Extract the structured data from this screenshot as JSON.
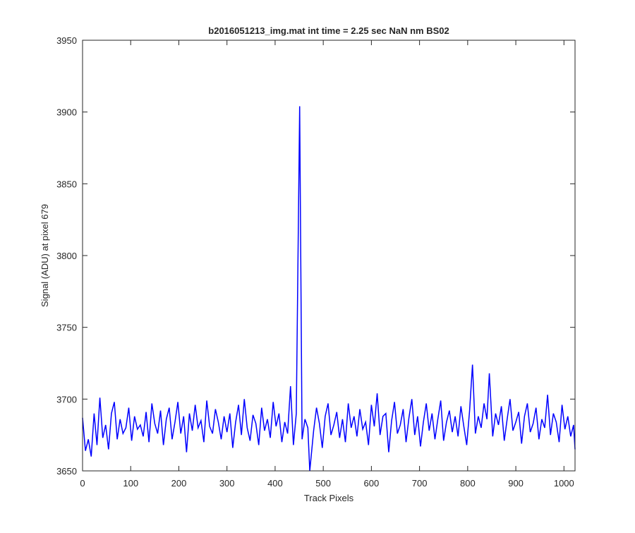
{
  "chart_data": {
    "type": "line",
    "title": "b2016051213_img.mat int time = 2.25 sec  NaN nm BS02",
    "xlabel": "Track Pixels",
    "ylabel": "Signal (ADU) at pixel 679",
    "x": [
      0,
      6,
      12,
      18,
      24,
      30,
      36,
      42,
      48,
      54,
      60,
      66,
      72,
      78,
      84,
      90,
      96,
      102,
      108,
      114,
      120,
      126,
      132,
      138,
      144,
      150,
      156,
      162,
      168,
      174,
      180,
      186,
      192,
      198,
      204,
      210,
      216,
      222,
      228,
      234,
      240,
      246,
      252,
      258,
      264,
      270,
      276,
      282,
      288,
      294,
      300,
      306,
      312,
      318,
      324,
      330,
      336,
      342,
      348,
      354,
      360,
      366,
      372,
      378,
      384,
      390,
      396,
      402,
      408,
      414,
      420,
      426,
      432,
      438,
      444,
      451,
      456,
      462,
      468,
      472,
      480,
      486,
      492,
      498,
      504,
      510,
      516,
      522,
      528,
      534,
      540,
      546,
      552,
      558,
      564,
      570,
      576,
      582,
      588,
      594,
      600,
      606,
      612,
      618,
      624,
      630,
      636,
      642,
      648,
      654,
      660,
      666,
      672,
      678,
      684,
      690,
      696,
      702,
      708,
      714,
      720,
      726,
      732,
      738,
      744,
      750,
      756,
      762,
      768,
      774,
      780,
      786,
      792,
      798,
      804,
      810,
      816,
      822,
      828,
      834,
      840,
      845,
      852,
      858,
      864,
      870,
      876,
      882,
      888,
      894,
      900,
      906,
      912,
      918,
      924,
      930,
      936,
      942,
      948,
      954,
      960,
      966,
      972,
      978,
      984,
      990,
      996,
      1002,
      1008,
      1014,
      1020,
      1023
    ],
    "series": [
      {
        "name": "signal",
        "color": "#0000ff",
        "values": [
          3687,
          3664,
          3672,
          3660,
          3690,
          3668,
          3701,
          3673,
          3682,
          3665,
          3690,
          3698,
          3672,
          3686,
          3676,
          3680,
          3694,
          3671,
          3688,
          3679,
          3682,
          3674,
          3691,
          3670,
          3697,
          3683,
          3676,
          3692,
          3668,
          3686,
          3694,
          3672,
          3684,
          3698,
          3676,
          3688,
          3663,
          3690,
          3678,
          3696,
          3680,
          3685,
          3670,
          3699,
          3681,
          3676,
          3693,
          3684,
          3672,
          3688,
          3677,
          3690,
          3666,
          3684,
          3696,
          3675,
          3700,
          3680,
          3671,
          3689,
          3683,
          3668,
          3694,
          3678,
          3686,
          3673,
          3698,
          3681,
          3690,
          3670,
          3684,
          3676,
          3709,
          3668,
          3690,
          3904,
          3672,
          3686,
          3680,
          3650,
          3678,
          3694,
          3683,
          3666,
          3688,
          3697,
          3675,
          3682,
          3691,
          3673,
          3686,
          3670,
          3697,
          3680,
          3688,
          3674,
          3693,
          3679,
          3684,
          3668,
          3696,
          3681,
          3704,
          3675,
          3688,
          3690,
          3663,
          3685,
          3698,
          3676,
          3682,
          3693,
          3670,
          3687,
          3700,
          3675,
          3688,
          3667,
          3684,
          3697,
          3678,
          3690,
          3672,
          3686,
          3699,
          3671,
          3684,
          3692,
          3677,
          3688,
          3674,
          3695,
          3681,
          3668,
          3692,
          3724,
          3676,
          3688,
          3680,
          3697,
          3686,
          3718,
          3674,
          3690,
          3682,
          3695,
          3671,
          3686,
          3700,
          3678,
          3684,
          3691,
          3669,
          3688,
          3697,
          3677,
          3683,
          3694,
          3672,
          3686,
          3680,
          3703,
          3675,
          3690,
          3684,
          3670,
          3696,
          3679,
          3688,
          3674,
          3682,
          3665
        ]
      }
    ],
    "xlim": [
      0,
      1023
    ],
    "ylim": [
      3650,
      3950
    ],
    "xticks": [
      0,
      100,
      200,
      300,
      400,
      500,
      600,
      700,
      800,
      900,
      1000
    ],
    "yticks": [
      3650,
      3700,
      3750,
      3800,
      3850,
      3900,
      3950
    ]
  }
}
